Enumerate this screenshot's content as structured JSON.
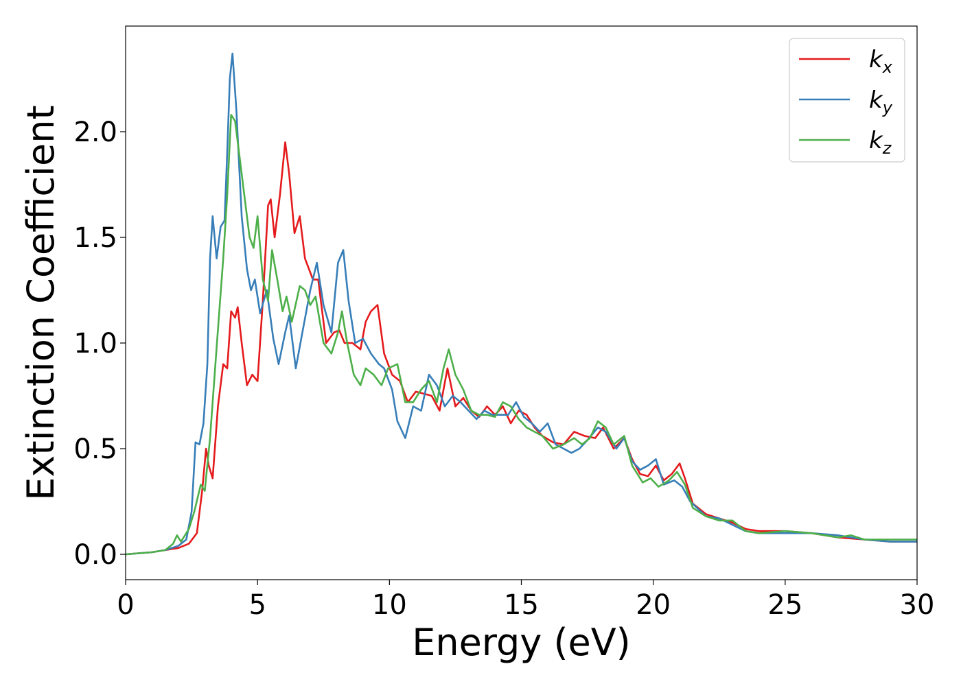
{
  "chart_data": {
    "type": "line",
    "title": "",
    "xlabel": "Energy (eV)",
    "ylabel": "Extinction Coefficient",
    "xlim": [
      0,
      30
    ],
    "ylim": [
      -0.12,
      2.5
    ],
    "xticks": [
      0,
      5,
      10,
      15,
      20,
      25,
      30
    ],
    "xtick_labels": [
      "0",
      "5",
      "10",
      "15",
      "20",
      "25",
      "30"
    ],
    "yticks": [
      0.0,
      0.5,
      1.0,
      1.5,
      2.0
    ],
    "ytick_labels": [
      "0.0",
      "0.5",
      "1.0",
      "1.5",
      "2.0"
    ],
    "grid": false,
    "legend_position": "top-right",
    "series": [
      {
        "name": "k_x",
        "base": "k",
        "sub": "x",
        "color": "#e41a1c",
        "points": [
          [
            0,
            0
          ],
          [
            1,
            0.01
          ],
          [
            1.5,
            0.02
          ],
          [
            2,
            0.03
          ],
          [
            2.4,
            0.05
          ],
          [
            2.7,
            0.1
          ],
          [
            2.9,
            0.3
          ],
          [
            3.05,
            0.5
          ],
          [
            3.15,
            0.42
          ],
          [
            3.3,
            0.36
          ],
          [
            3.5,
            0.7
          ],
          [
            3.7,
            0.9
          ],
          [
            3.85,
            0.88
          ],
          [
            4.0,
            1.15
          ],
          [
            4.15,
            1.12
          ],
          [
            4.25,
            1.17
          ],
          [
            4.4,
            1.0
          ],
          [
            4.6,
            0.8
          ],
          [
            4.8,
            0.85
          ],
          [
            5.0,
            0.82
          ],
          [
            5.2,
            1.2
          ],
          [
            5.4,
            1.65
          ],
          [
            5.5,
            1.68
          ],
          [
            5.65,
            1.5
          ],
          [
            5.85,
            1.7
          ],
          [
            6.05,
            1.95
          ],
          [
            6.2,
            1.8
          ],
          [
            6.4,
            1.52
          ],
          [
            6.6,
            1.6
          ],
          [
            6.8,
            1.4
          ],
          [
            7.1,
            1.3
          ],
          [
            7.3,
            1.3
          ],
          [
            7.6,
            1.0
          ],
          [
            7.9,
            1.05
          ],
          [
            8.1,
            1.06
          ],
          [
            8.3,
            1.0
          ],
          [
            8.6,
            1.0
          ],
          [
            8.9,
            0.97
          ],
          [
            9.1,
            1.1
          ],
          [
            9.3,
            1.15
          ],
          [
            9.55,
            1.18
          ],
          [
            9.8,
            0.95
          ],
          [
            10.1,
            0.85
          ],
          [
            10.4,
            0.82
          ],
          [
            10.7,
            0.72
          ],
          [
            11.0,
            0.77
          ],
          [
            11.3,
            0.76
          ],
          [
            11.6,
            0.75
          ],
          [
            11.9,
            0.68
          ],
          [
            12.2,
            0.88
          ],
          [
            12.5,
            0.7
          ],
          [
            12.8,
            0.74
          ],
          [
            13.1,
            0.68
          ],
          [
            13.4,
            0.65
          ],
          [
            13.7,
            0.7
          ],
          [
            14.0,
            0.66
          ],
          [
            14.3,
            0.7
          ],
          [
            14.6,
            0.62
          ],
          [
            14.9,
            0.68
          ],
          [
            15.2,
            0.66
          ],
          [
            15.5,
            0.6
          ],
          [
            15.8,
            0.56
          ],
          [
            16.2,
            0.53
          ],
          [
            16.6,
            0.52
          ],
          [
            17.0,
            0.58
          ],
          [
            17.4,
            0.56
          ],
          [
            17.8,
            0.55
          ],
          [
            18.1,
            0.6
          ],
          [
            18.5,
            0.5
          ],
          [
            18.9,
            0.55
          ],
          [
            19.2,
            0.45
          ],
          [
            19.5,
            0.38
          ],
          [
            19.8,
            0.37
          ],
          [
            20.1,
            0.42
          ],
          [
            20.4,
            0.35
          ],
          [
            20.7,
            0.38
          ],
          [
            21.0,
            0.43
          ],
          [
            21.2,
            0.36
          ],
          [
            21.5,
            0.24
          ],
          [
            22,
            0.19
          ],
          [
            22.5,
            0.17
          ],
          [
            23,
            0.15
          ],
          [
            23.5,
            0.12
          ],
          [
            24,
            0.11
          ],
          [
            25,
            0.11
          ],
          [
            26,
            0.1
          ],
          [
            27,
            0.08
          ],
          [
            28,
            0.07
          ],
          [
            29,
            0.06
          ],
          [
            30,
            0.06
          ]
        ]
      },
      {
        "name": "k_y",
        "base": "k",
        "sub": "y",
        "color": "#377eb8",
        "points": [
          [
            0,
            0
          ],
          [
            1,
            0.01
          ],
          [
            1.5,
            0.02
          ],
          [
            2,
            0.04
          ],
          [
            2.3,
            0.07
          ],
          [
            2.5,
            0.2
          ],
          [
            2.65,
            0.53
          ],
          [
            2.8,
            0.52
          ],
          [
            2.95,
            0.62
          ],
          [
            3.1,
            0.9
          ],
          [
            3.2,
            1.4
          ],
          [
            3.3,
            1.6
          ],
          [
            3.45,
            1.4
          ],
          [
            3.6,
            1.55
          ],
          [
            3.75,
            1.58
          ],
          [
            3.85,
            1.9
          ],
          [
            3.95,
            2.25
          ],
          [
            4.05,
            2.37
          ],
          [
            4.2,
            2.1
          ],
          [
            4.4,
            1.6
          ],
          [
            4.6,
            1.35
          ],
          [
            4.75,
            1.25
          ],
          [
            4.9,
            1.3
          ],
          [
            5.1,
            1.14
          ],
          [
            5.35,
            1.25
          ],
          [
            5.6,
            1.02
          ],
          [
            5.8,
            0.9
          ],
          [
            6.05,
            1.05
          ],
          [
            6.2,
            1.13
          ],
          [
            6.45,
            0.88
          ],
          [
            6.7,
            1.05
          ],
          [
            7.0,
            1.25
          ],
          [
            7.25,
            1.38
          ],
          [
            7.5,
            1.18
          ],
          [
            7.8,
            1.05
          ],
          [
            8.05,
            1.38
          ],
          [
            8.25,
            1.44
          ],
          [
            8.45,
            1.2
          ],
          [
            8.7,
            1.0
          ],
          [
            9.0,
            1.02
          ],
          [
            9.3,
            0.95
          ],
          [
            9.6,
            0.9
          ],
          [
            9.8,
            0.88
          ],
          [
            10.1,
            0.78
          ],
          [
            10.3,
            0.63
          ],
          [
            10.6,
            0.55
          ],
          [
            10.9,
            0.7
          ],
          [
            11.2,
            0.68
          ],
          [
            11.5,
            0.85
          ],
          [
            11.8,
            0.8
          ],
          [
            12.1,
            0.7
          ],
          [
            12.4,
            0.75
          ],
          [
            12.7,
            0.72
          ],
          [
            13.0,
            0.68
          ],
          [
            13.3,
            0.64
          ],
          [
            13.6,
            0.68
          ],
          [
            13.9,
            0.66
          ],
          [
            14.2,
            0.66
          ],
          [
            14.5,
            0.66
          ],
          [
            14.8,
            0.72
          ],
          [
            15.1,
            0.65
          ],
          [
            15.4,
            0.62
          ],
          [
            15.7,
            0.58
          ],
          [
            16.0,
            0.62
          ],
          [
            16.3,
            0.52
          ],
          [
            16.6,
            0.5
          ],
          [
            16.9,
            0.48
          ],
          [
            17.2,
            0.5
          ],
          [
            17.5,
            0.54
          ],
          [
            17.9,
            0.6
          ],
          [
            18.2,
            0.58
          ],
          [
            18.6,
            0.5
          ],
          [
            18.9,
            0.55
          ],
          [
            19.2,
            0.44
          ],
          [
            19.5,
            0.4
          ],
          [
            19.8,
            0.42
          ],
          [
            20.1,
            0.45
          ],
          [
            20.4,
            0.33
          ],
          [
            20.8,
            0.35
          ],
          [
            21.1,
            0.32
          ],
          [
            21.4,
            0.25
          ],
          [
            22,
            0.18
          ],
          [
            22.5,
            0.17
          ],
          [
            23,
            0.14
          ],
          [
            23.5,
            0.11
          ],
          [
            24,
            0.1
          ],
          [
            25,
            0.1
          ],
          [
            26,
            0.1
          ],
          [
            27,
            0.09
          ],
          [
            28,
            0.07
          ],
          [
            29,
            0.06
          ],
          [
            30,
            0.06
          ]
        ]
      },
      {
        "name": "k_z",
        "base": "k",
        "sub": "z",
        "color": "#4daf4a",
        "points": [
          [
            0,
            0
          ],
          [
            1,
            0.01
          ],
          [
            1.5,
            0.02
          ],
          [
            1.8,
            0.05
          ],
          [
            1.95,
            0.09
          ],
          [
            2.1,
            0.06
          ],
          [
            2.4,
            0.12
          ],
          [
            2.6,
            0.2
          ],
          [
            2.85,
            0.33
          ],
          [
            3.0,
            0.3
          ],
          [
            3.2,
            0.55
          ],
          [
            3.45,
            0.98
          ],
          [
            3.7,
            1.4
          ],
          [
            3.85,
            1.7
          ],
          [
            4.0,
            2.08
          ],
          [
            4.15,
            2.05
          ],
          [
            4.3,
            1.9
          ],
          [
            4.5,
            1.7
          ],
          [
            4.7,
            1.5
          ],
          [
            4.85,
            1.45
          ],
          [
            5.0,
            1.6
          ],
          [
            5.2,
            1.3
          ],
          [
            5.4,
            1.2
          ],
          [
            5.55,
            1.44
          ],
          [
            5.75,
            1.3
          ],
          [
            5.95,
            1.15
          ],
          [
            6.1,
            1.22
          ],
          [
            6.3,
            1.1
          ],
          [
            6.6,
            1.27
          ],
          [
            6.8,
            1.25
          ],
          [
            7.0,
            1.18
          ],
          [
            7.2,
            1.22
          ],
          [
            7.5,
            1.0
          ],
          [
            7.8,
            0.95
          ],
          [
            8.05,
            1.05
          ],
          [
            8.2,
            1.15
          ],
          [
            8.4,
            1.0
          ],
          [
            8.65,
            0.85
          ],
          [
            8.9,
            0.8
          ],
          [
            9.1,
            0.88
          ],
          [
            9.4,
            0.85
          ],
          [
            9.7,
            0.8
          ],
          [
            9.95,
            0.88
          ],
          [
            10.3,
            0.9
          ],
          [
            10.6,
            0.72
          ],
          [
            10.9,
            0.72
          ],
          [
            11.2,
            0.78
          ],
          [
            11.5,
            0.82
          ],
          [
            11.8,
            0.72
          ],
          [
            12.05,
            0.88
          ],
          [
            12.25,
            0.97
          ],
          [
            12.5,
            0.85
          ],
          [
            12.8,
            0.78
          ],
          [
            13.1,
            0.68
          ],
          [
            13.4,
            0.66
          ],
          [
            13.7,
            0.66
          ],
          [
            14.0,
            0.65
          ],
          [
            14.3,
            0.72
          ],
          [
            14.6,
            0.7
          ],
          [
            14.9,
            0.64
          ],
          [
            15.2,
            0.6
          ],
          [
            15.5,
            0.58
          ],
          [
            15.8,
            0.56
          ],
          [
            16.2,
            0.5
          ],
          [
            16.6,
            0.52
          ],
          [
            17.0,
            0.55
          ],
          [
            17.3,
            0.52
          ],
          [
            17.6,
            0.55
          ],
          [
            17.9,
            0.63
          ],
          [
            18.2,
            0.6
          ],
          [
            18.5,
            0.52
          ],
          [
            18.9,
            0.56
          ],
          [
            19.2,
            0.42
          ],
          [
            19.6,
            0.34
          ],
          [
            19.9,
            0.36
          ],
          [
            20.2,
            0.32
          ],
          [
            20.6,
            0.35
          ],
          [
            20.9,
            0.39
          ],
          [
            21.2,
            0.33
          ],
          [
            21.5,
            0.22
          ],
          [
            22,
            0.18
          ],
          [
            22.5,
            0.16
          ],
          [
            23,
            0.16
          ],
          [
            23.5,
            0.11
          ],
          [
            24,
            0.1
          ],
          [
            25,
            0.11
          ],
          [
            26,
            0.1
          ],
          [
            27,
            0.08
          ],
          [
            27.5,
            0.09
          ],
          [
            28,
            0.07
          ],
          [
            29,
            0.07
          ],
          [
            30,
            0.07
          ]
        ]
      }
    ]
  }
}
